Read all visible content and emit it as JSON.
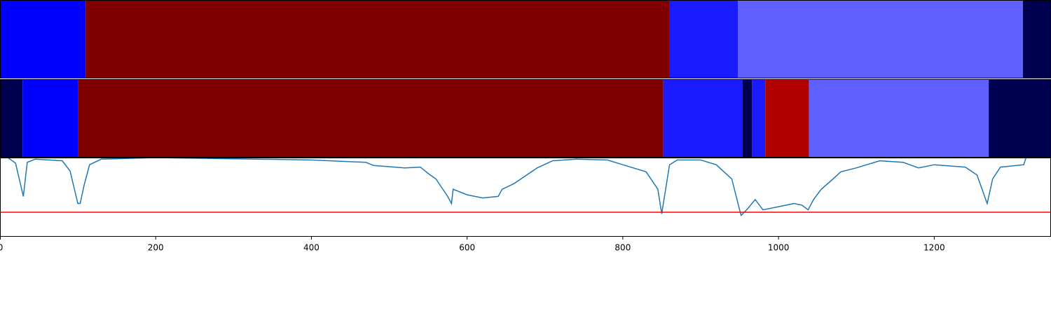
{
  "chart_data": {
    "type": "segments_line",
    "xlim": [
      0,
      1350
    ],
    "xticks": [
      0,
      200,
      400,
      600,
      800,
      1000,
      1200
    ],
    "bands": [
      {
        "starts": [
          0,
          110,
          860,
          948,
          1314
        ],
        "ends": [
          110,
          860,
          948,
          1314,
          1350
        ],
        "colors": [
          "#0000ff",
          "#800000",
          "#1a1aff",
          "#6060ff",
          "#000050"
        ]
      },
      {
        "starts": [
          0,
          29,
          100,
          852,
          954,
          966,
          983,
          1039,
          1270
        ],
        "ends": [
          29,
          100,
          852,
          954,
          966,
          983,
          1039,
          1270,
          1350
        ],
        "colors": [
          "#000050",
          "#0000ff",
          "#800000",
          "#1a1aff",
          "#000050",
          "#1a1aff",
          "#b00000",
          "#6060ff",
          "#000050"
        ]
      }
    ],
    "ylim": [
      0,
      1
    ],
    "line": {
      "color": "#1f77b4",
      "x": [
        0,
        10,
        20,
        30,
        35,
        45,
        80,
        90,
        100,
        103,
        108,
        115,
        130,
        200,
        400,
        470,
        480,
        520,
        540,
        550,
        560,
        575,
        580,
        582,
        600,
        620,
        640,
        645,
        660,
        690,
        710,
        740,
        780,
        800,
        830,
        845,
        850,
        855,
        860,
        870,
        900,
        920,
        940,
        950,
        952,
        960,
        970,
        980,
        1000,
        1020,
        1030,
        1038,
        1045,
        1055,
        1070,
        1080,
        1100,
        1130,
        1160,
        1180,
        1200,
        1240,
        1255,
        1268,
        1275,
        1285,
        1315,
        1318
      ],
      "values": [
        1.0,
        1.0,
        0.93,
        0.51,
        0.94,
        0.98,
        0.96,
        0.83,
        0.42,
        0.42,
        0.65,
        0.91,
        0.98,
        1.0,
        0.97,
        0.94,
        0.9,
        0.87,
        0.88,
        0.8,
        0.73,
        0.51,
        0.42,
        0.6,
        0.53,
        0.49,
        0.51,
        0.6,
        0.67,
        0.87,
        0.96,
        0.98,
        0.97,
        0.91,
        0.82,
        0.6,
        0.29,
        0.6,
        0.91,
        0.97,
        0.97,
        0.91,
        0.73,
        0.34,
        0.27,
        0.35,
        0.47,
        0.34,
        0.38,
        0.42,
        0.4,
        0.34,
        0.47,
        0.6,
        0.73,
        0.82,
        0.87,
        0.96,
        0.94,
        0.87,
        0.91,
        0.88,
        0.78,
        0.42,
        0.73,
        0.88,
        0.91,
        1.0
      ]
    },
    "hline": {
      "value": 0.31,
      "color": "#ff0000"
    }
  }
}
